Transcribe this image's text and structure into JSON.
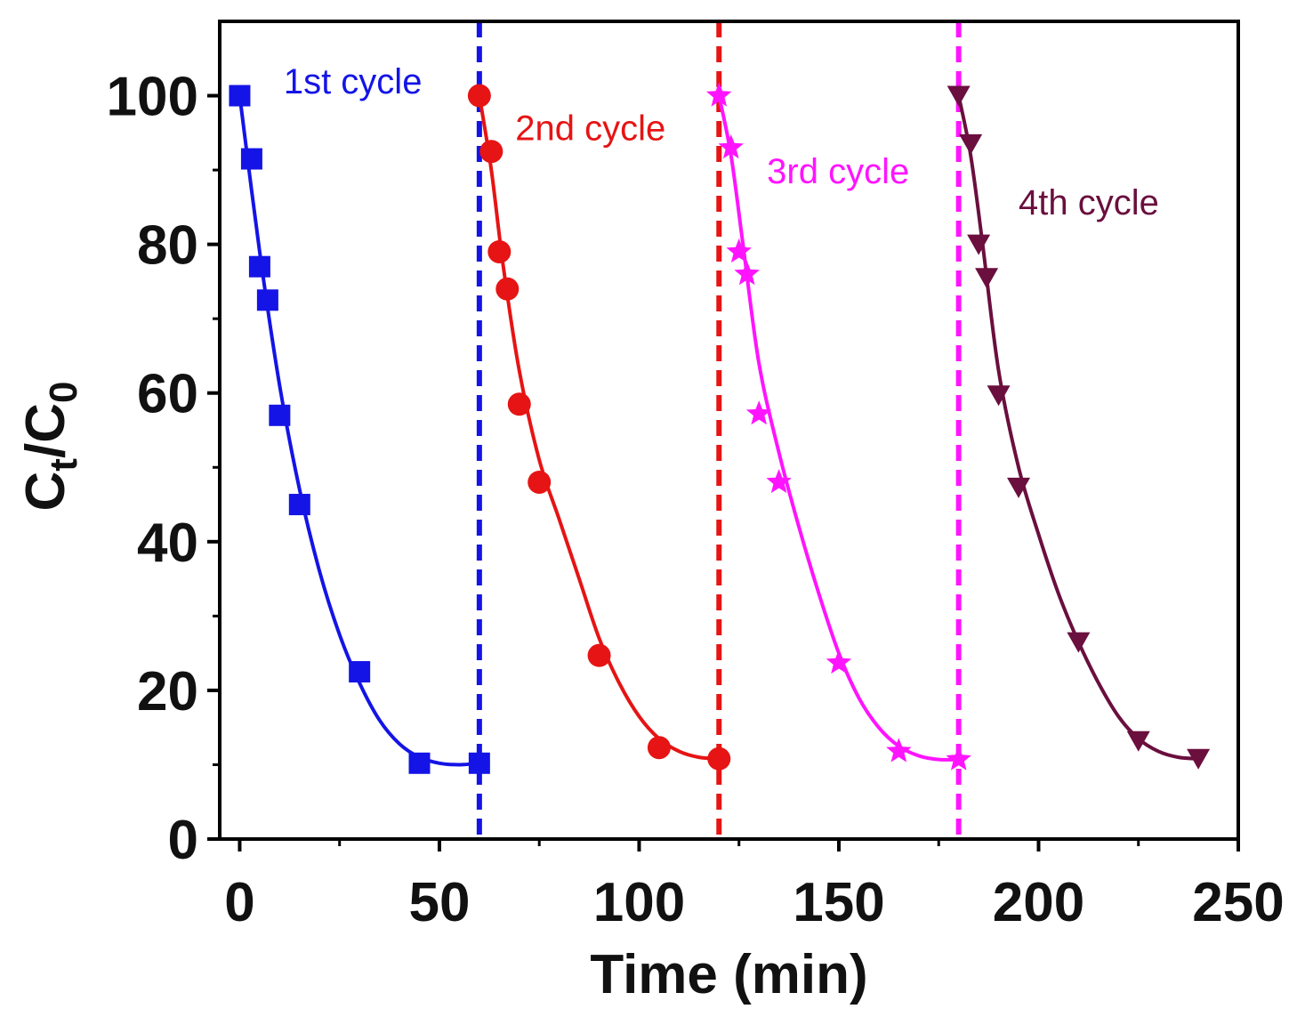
{
  "chart_data": {
    "type": "scatter",
    "title": "",
    "xlabel": "Time (min)",
    "ylabel": {
      "main": "C",
      "sub1": "t",
      "sep": "/C",
      "sub2": "0"
    },
    "xlim": [
      -5,
      250
    ],
    "ylim": [
      0,
      110
    ],
    "xticks": [
      0,
      50,
      100,
      150,
      200,
      250
    ],
    "yticks": [
      0,
      20,
      40,
      60,
      80,
      100
    ],
    "grid": false,
    "series": [
      {
        "name": "1st cycle",
        "color": "#1414e6",
        "marker": "square",
        "x": [
          0,
          3,
          5,
          7,
          10,
          15,
          30,
          45,
          60
        ],
        "y": [
          100,
          91.5,
          77,
          72.5,
          57,
          45,
          22.5,
          10.2,
          10.2
        ],
        "fit": [
          [
            0,
            100
          ],
          [
            5,
            79
          ],
          [
            10,
            61
          ],
          [
            15,
            47
          ],
          [
            20,
            36
          ],
          [
            25,
            27.5
          ],
          [
            30,
            21
          ],
          [
            35,
            16
          ],
          [
            40,
            12.8
          ],
          [
            45,
            11
          ],
          [
            50,
            10.2
          ],
          [
            55,
            10
          ],
          [
            60,
            10.2
          ]
        ]
      },
      {
        "name": "2nd cycle",
        "color": "#e61414",
        "marker": "circle",
        "x": [
          60,
          63,
          65,
          67,
          70,
          75,
          90,
          105,
          120
        ],
        "y": [
          100,
          92.5,
          79,
          74,
          58.5,
          48,
          24.7,
          12.3,
          10.8
        ],
        "fit": [
          [
            60,
            100
          ],
          [
            63,
            90
          ],
          [
            66,
            77
          ],
          [
            70,
            63
          ],
          [
            75,
            51
          ],
          [
            80,
            43
          ],
          [
            85,
            35
          ],
          [
            90,
            27
          ],
          [
            95,
            21
          ],
          [
            100,
            16.5
          ],
          [
            105,
            13.5
          ],
          [
            110,
            11.8
          ],
          [
            115,
            11
          ],
          [
            120,
            10.8
          ]
        ]
      },
      {
        "name": "3rd cycle",
        "color": "#ff14ff",
        "marker": "star",
        "x": [
          120,
          123,
          125,
          127,
          130,
          135,
          150,
          165,
          180
        ],
        "y": [
          100,
          93,
          79,
          76,
          57.2,
          48,
          23.7,
          11.8,
          10.7
        ],
        "fit": [
          [
            120,
            100
          ],
          [
            123,
            92
          ],
          [
            126,
            80
          ],
          [
            130,
            64
          ],
          [
            135,
            52
          ],
          [
            140,
            42
          ],
          [
            145,
            33
          ],
          [
            150,
            25
          ],
          [
            155,
            19
          ],
          [
            160,
            15
          ],
          [
            165,
            12.5
          ],
          [
            170,
            11.2
          ],
          [
            175,
            10.7
          ],
          [
            180,
            10.7
          ]
        ]
      },
      {
        "name": "4th cycle",
        "color": "#6a0f3e",
        "marker": "triangle-down",
        "x": [
          180,
          183,
          185,
          187,
          190,
          195,
          210,
          225,
          240
        ],
        "y": [
          100,
          93.5,
          80,
          75.5,
          59.7,
          47.3,
          26.5,
          13.2,
          10.8
        ],
        "fit": [
          [
            180,
            100
          ],
          [
            183,
            92
          ],
          [
            186,
            80
          ],
          [
            190,
            63
          ],
          [
            195,
            50
          ],
          [
            200,
            41
          ],
          [
            205,
            33
          ],
          [
            210,
            26.5
          ],
          [
            215,
            21
          ],
          [
            220,
            16.5
          ],
          [
            225,
            13.5
          ],
          [
            230,
            11.8
          ],
          [
            235,
            11
          ],
          [
            240,
            10.8
          ]
        ]
      }
    ],
    "vlines": [
      {
        "x": 60,
        "color": "#1414e6",
        "style": "dashed"
      },
      {
        "x": 120,
        "color": "#e61414",
        "style": "dashed"
      },
      {
        "x": 180,
        "color": "#ff14ff",
        "style": "dashed"
      }
    ],
    "annotations": [
      {
        "text": "1st cycle",
        "x": 11,
        "y": 100.3,
        "color": "#1414e6"
      },
      {
        "text": "2nd cycle",
        "x": 69,
        "y": 94,
        "color": "#e61414"
      },
      {
        "text": "3rd cycle",
        "x": 132,
        "y": 88.2,
        "color": "#ff14ff"
      },
      {
        "text": "4th cycle",
        "x": 195,
        "y": 84,
        "color": "#6a0f3e"
      }
    ]
  }
}
